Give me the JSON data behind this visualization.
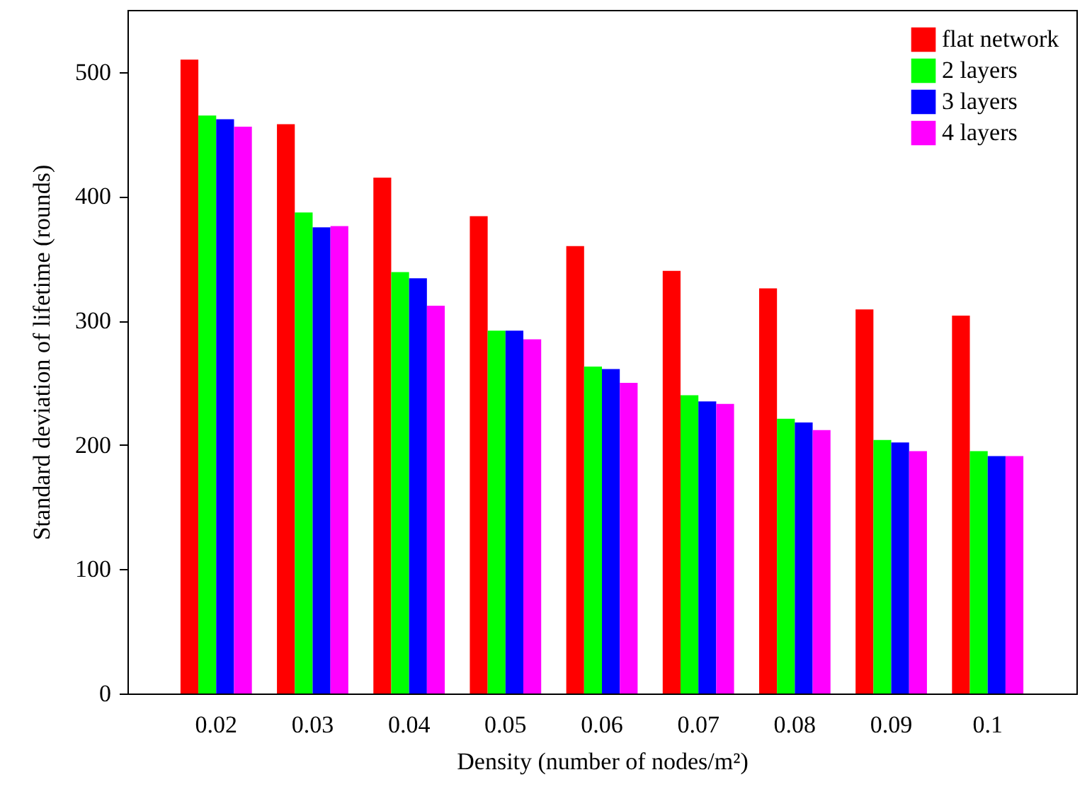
{
  "chart_data": {
    "type": "bar",
    "xlabel": "Density (number of nodes/m²)",
    "ylabel": "Standard deviation of lifetime (rounds)",
    "categories": [
      "0.02",
      "0.03",
      "0.04",
      "0.05",
      "0.06",
      "0.07",
      "0.08",
      "0.09",
      "0.1"
    ],
    "series": [
      {
        "name": "flat network",
        "color": "#ff0000",
        "values": [
          510,
          458,
          415,
          384,
          360,
          340,
          326,
          309,
          304
        ]
      },
      {
        "name": "2 layers",
        "color": "#00ff00",
        "values": [
          465,
          387,
          339,
          292,
          263,
          240,
          221,
          204,
          195
        ]
      },
      {
        "name": "3 layers",
        "color": "#0000ff",
        "values": [
          462,
          375,
          334,
          292,
          261,
          235,
          218,
          202,
          191
        ]
      },
      {
        "name": "4 layers",
        "color": "#ff00ff",
        "values": [
          456,
          376,
          312,
          285,
          250,
          233,
          212,
          195,
          191
        ]
      }
    ],
    "ylim": [
      0,
      550
    ],
    "yticks": [
      0,
      100,
      200,
      300,
      400,
      500
    ],
    "grid": false,
    "legend": "top right"
  }
}
